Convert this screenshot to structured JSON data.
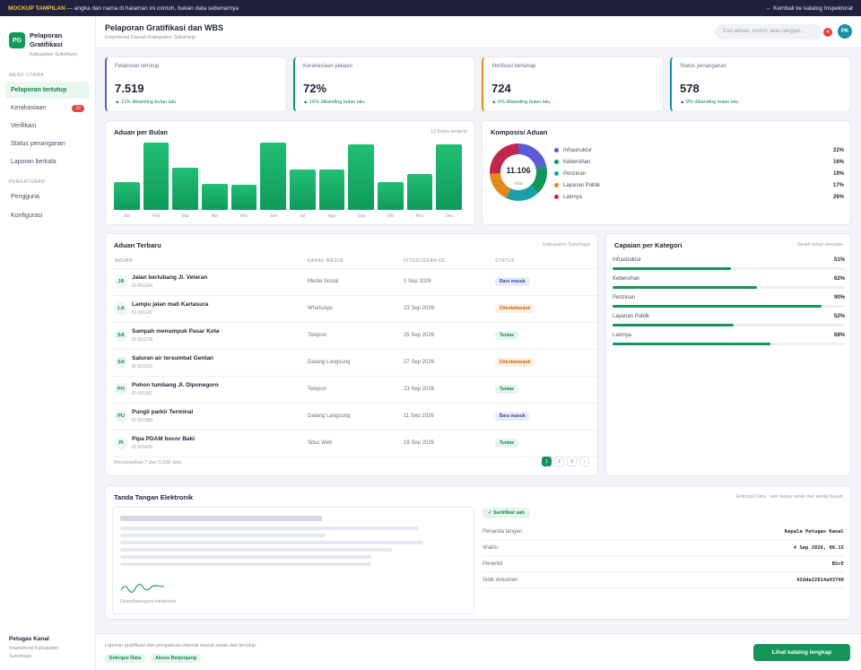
{
  "banner": {
    "tag": "MOCKUP TAMPILAN",
    "text": " — angka dan nama di halaman ini contoh, bukan data sebenarnya",
    "back": "← Kembali ke katalog Inspektorat"
  },
  "brand": {
    "initials": "PG",
    "title": "Pelaporan Gratifikasi",
    "sub": "Kabupaten Sukoharjo"
  },
  "sidebar": {
    "section1": "MENU UTAMA",
    "section2": "PENGATURAN",
    "items": [
      {
        "label": "Pelaporan tertutup"
      },
      {
        "label": "Kerahasiaan",
        "badge": "12"
      },
      {
        "label": "Verifikasi"
      },
      {
        "label": "Status penanganan"
      },
      {
        "label": "Laporan berkala"
      }
    ],
    "settings": [
      {
        "label": "Pengguna"
      },
      {
        "label": "Konfigurasi"
      }
    ],
    "footer": {
      "name": "Petugas Kanal",
      "line1": "Inspektorat Kabupaten",
      "line2": "Sukoharjo"
    }
  },
  "header": {
    "title": "Pelaporan Gratifikasi dan WBS",
    "sub": "Inspektorat Daerah Kabupaten Sukoharjo",
    "search_placeholder": "Cari aduan, nomor, atau tanggal...",
    "notif": "4",
    "avatar": "PK"
  },
  "kpis": [
    {
      "label": "Pelaporan tertutup",
      "value": "7.519",
      "change": "▲ 11% dibanding bulan lalu",
      "color": "#5b5bd6"
    },
    {
      "label": "Kerahasiaan pelapor",
      "value": "72%",
      "change": "▲ 16% dibanding bulan lalu",
      "color": "#14955a"
    },
    {
      "label": "Verifikasi bertahap",
      "value": "724",
      "change": "▲ 6% dibanding bulan lalu",
      "color": "#e08a1e"
    },
    {
      "label": "Status penanganan",
      "value": "578",
      "change": "▲ 8% dibanding bulan lalu",
      "color": "#1a8ea3"
    }
  ],
  "monthly": {
    "title": "Aduan per Bulan",
    "note": "12 bulan terakhir"
  },
  "chart_data": {
    "type": "bar",
    "title": "Aduan per Bulan",
    "categories": [
      "Jan",
      "Feb",
      "Mar",
      "Apr",
      "Mei",
      "Jun",
      "Jul",
      "Agu",
      "Sep",
      "Okt",
      "Nov",
      "Des"
    ],
    "values": [
      41,
      100,
      63,
      39,
      37,
      100,
      60,
      60,
      97,
      41,
      54,
      97
    ],
    "ylim": [
      0,
      100
    ]
  },
  "composition": {
    "title": "Komposisi Aduan",
    "total": "11.106",
    "total_label": "total",
    "items": [
      {
        "name": "Infrastruktur",
        "pct": "22%",
        "value": 22,
        "color": "#5b5bd6"
      },
      {
        "name": "Kebersihan",
        "pct": "16%",
        "value": 16,
        "color": "#14955a"
      },
      {
        "name": "Perizinan",
        "pct": "19%",
        "value": 19,
        "color": "#1aa0a8"
      },
      {
        "name": "Layanan Publik",
        "pct": "17%",
        "value": 17,
        "color": "#e08a1e"
      },
      {
        "name": "Lainnya",
        "pct": "26%",
        "value": 26,
        "color": "#c2284f"
      }
    ]
  },
  "recent": {
    "title": "Aduan Terbaru",
    "note": "Kabupaten Sukoharjo",
    "columns": [
      "ADUAN",
      "KANAL MASUK",
      "DITERUSKAN KE",
      "STATUS"
    ],
    "rows": [
      {
        "ini": "JA",
        "name": "Jalan berlubang Jl. Veteran",
        "id": "ID 001204",
        "channel": "Media Sosial",
        "date": "1 Sep 2026",
        "status": "Baru masuk",
        "kind": "baru"
      },
      {
        "ini": "LA",
        "name": "Lampu jalan mati Kartasura",
        "id": "ID 001241",
        "channel": "WhatsApp",
        "date": "23 Sep 2026",
        "status": "Ditindaklanjuti",
        "kind": "ditindak"
      },
      {
        "ini": "SA",
        "name": "Sampah menumpuk Pasar Kota",
        "id": "ID 001278",
        "channel": "Telepon",
        "date": "26 Sep 2026",
        "status": "Tuntas",
        "kind": "tuntas"
      },
      {
        "ini": "SA",
        "name": "Saluran air tersumbat Gentan",
        "id": "ID 001315",
        "channel": "Datang Langsung",
        "date": "27 Sep 2026",
        "status": "Ditindaklanjuti",
        "kind": "ditindak"
      },
      {
        "ini": "PO",
        "name": "Pohon tumbang Jl. Diponegoro",
        "id": "ID 001352",
        "channel": "Telepon",
        "date": "23 Sep 2026",
        "status": "Tuntas",
        "kind": "tuntas"
      },
      {
        "ini": "PU",
        "name": "Pungli parkir Terminal",
        "id": "ID 001389",
        "channel": "Datang Langsung",
        "date": "11 Sep 2026",
        "status": "Baru masuk",
        "kind": "baru"
      },
      {
        "ini": "PI",
        "name": "Pipa PDAM bocor Baki",
        "id": "ID 001426",
        "channel": "Situs Web",
        "date": "19 Sep 2026",
        "status": "Tuntas",
        "kind": "tuntas"
      }
    ],
    "footer": "Menampilkan 7 dari 5.598 data",
    "pages": [
      "1",
      "2",
      "3",
      "›"
    ]
  },
  "achievement": {
    "title": "Capaian per Kategori",
    "note": "Target tahun berjalan",
    "items": [
      {
        "name": "Infrastruktur",
        "pct": "51%",
        "value": 51
      },
      {
        "name": "Kebersihan",
        "pct": "62%",
        "value": 62
      },
      {
        "name": "Perizinan",
        "pct": "90%",
        "value": 90
      },
      {
        "name": "Layanan Publik",
        "pct": "52%",
        "value": 52
      },
      {
        "name": "Lainnya",
        "pct": "68%",
        "value": 68
      }
    ]
  },
  "signature": {
    "title": "Tanda Tangan Elektronik",
    "note": "Enkripsi Data · sah tanpa cetak dan tanda basah",
    "signed_caption": "Ditandatangani elektronik",
    "cert": "✓ Sertifikat sah",
    "fields": [
      {
        "k": "Penanda tangan",
        "v": "Kepala Petugas Kanal"
      },
      {
        "k": "Waktu",
        "v": "4 Sep 2026, 09.15"
      },
      {
        "k": "Penerbit",
        "v": "BSrE"
      },
      {
        "k": "Sidik dokumen",
        "v": "42dda22014a93740"
      }
    ]
  },
  "bottom": {
    "text": "Laporan gratifikasi dan pengaduan internal masuk aman dan tertutup.",
    "chips": [
      "Enkripsi Data",
      "Akses Berjenjang"
    ],
    "cta": "Lihat katalog lengkap"
  }
}
